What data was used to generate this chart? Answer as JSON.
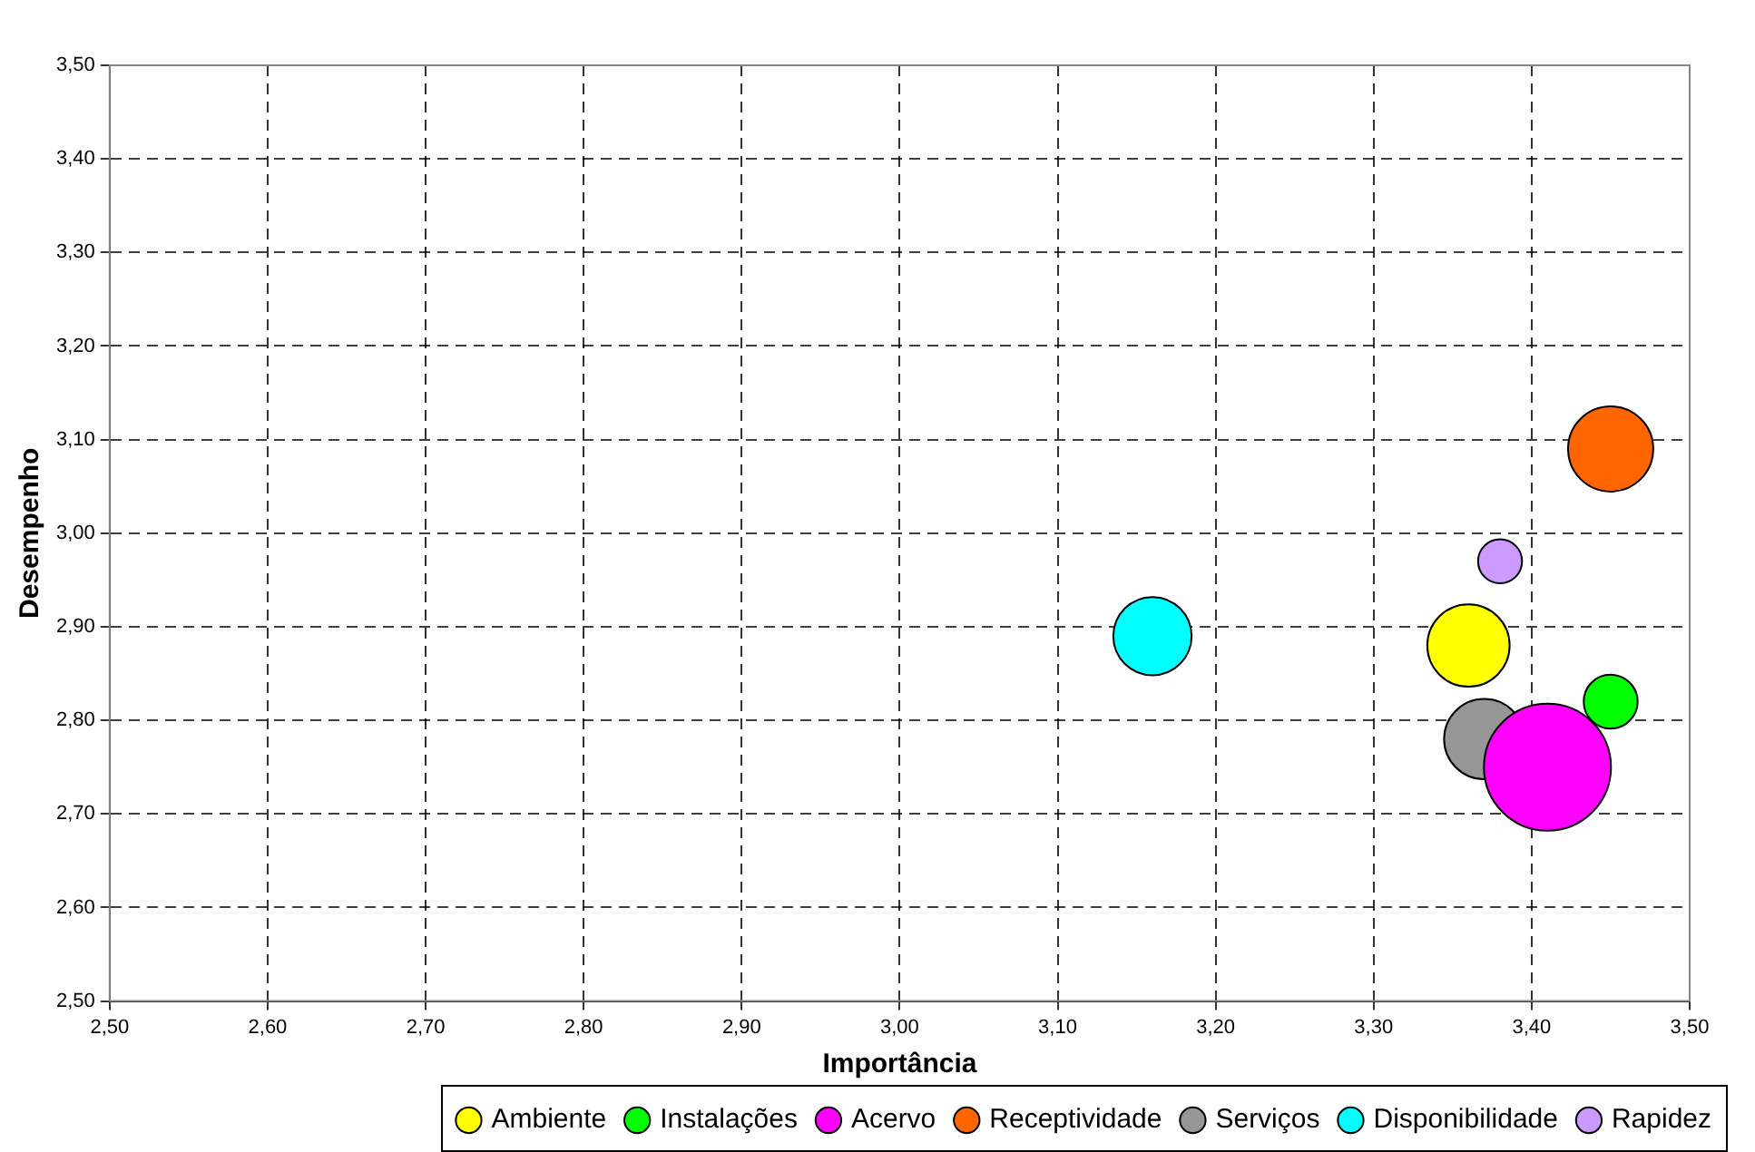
{
  "chart_data": {
    "type": "bubble",
    "xlabel": "Importância",
    "ylabel": "Desempenho",
    "xlim": [
      2.5,
      3.5
    ],
    "ylim": [
      2.5,
      3.5
    ],
    "xticks": [
      {
        "value": 2.5,
        "label": "2,50"
      },
      {
        "value": 2.6,
        "label": "2,60"
      },
      {
        "value": 2.7,
        "label": "2,70"
      },
      {
        "value": 2.8,
        "label": "2,80"
      },
      {
        "value": 2.9,
        "label": "2,90"
      },
      {
        "value": 3.0,
        "label": "3,00"
      },
      {
        "value": 3.1,
        "label": "3,10"
      },
      {
        "value": 3.2,
        "label": "3,20"
      },
      {
        "value": 3.3,
        "label": "3,30"
      },
      {
        "value": 3.4,
        "label": "3,40"
      },
      {
        "value": 3.5,
        "label": "3,50"
      }
    ],
    "yticks": [
      {
        "value": 2.5,
        "label": "2,50"
      },
      {
        "value": 2.6,
        "label": "2,60"
      },
      {
        "value": 2.7,
        "label": "2,70"
      },
      {
        "value": 2.8,
        "label": "2,80"
      },
      {
        "value": 2.9,
        "label": "2,90"
      },
      {
        "value": 3.0,
        "label": "3,00"
      },
      {
        "value": 3.1,
        "label": "3,10"
      },
      {
        "value": 3.2,
        "label": "3,20"
      },
      {
        "value": 3.3,
        "label": "3,30"
      },
      {
        "value": 3.4,
        "label": "3,40"
      },
      {
        "value": 3.5,
        "label": "3,50"
      }
    ],
    "grid": true,
    "line_style": "dashed",
    "legend": "bottom",
    "series": [
      {
        "name": "Ambiente",
        "color": "#ffff00",
        "x": [
          3.36
        ],
        "values": [
          2.88
        ],
        "sizes": [
          0.42
        ]
      },
      {
        "name": "Instalações",
        "color": "#00ff00",
        "x": [
          3.45
        ],
        "values": [
          2.82
        ],
        "sizes": [
          0.18
        ]
      },
      {
        "name": "Acervo",
        "color": "#ff00ff",
        "x": [
          3.41
        ],
        "values": [
          2.75
        ],
        "sizes": [
          1
        ]
      },
      {
        "name": "Receptividade",
        "color": "#ff6600",
        "x": [
          3.45
        ],
        "values": [
          3.09
        ],
        "sizes": [
          0.45
        ]
      },
      {
        "name": "Serviços",
        "color": "#969696",
        "x": [
          3.37
        ],
        "values": [
          2.78
        ],
        "sizes": [
          0.4
        ]
      },
      {
        "name": "Disponibilidade",
        "color": "#00ffff",
        "x": [
          3.16
        ],
        "values": [
          2.89
        ],
        "sizes": [
          0.38
        ]
      },
      {
        "name": "Rapidez",
        "color": "#cc99ff",
        "x": [
          3.38
        ],
        "values": [
          2.97
        ],
        "sizes": [
          0.12
        ]
      }
    ]
  }
}
